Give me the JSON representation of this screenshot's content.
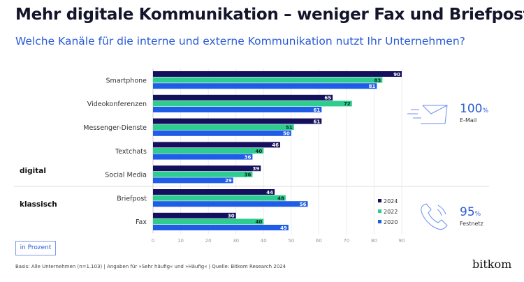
{
  "title": "Mehr digitale Kommunikation – weniger Fax und Briefpost",
  "subtitle": "Welche Kanäle für die interne und externe Kommunikation nutzt Ihr Unternehmen?",
  "unit_label": "in Prozent",
  "footer": "Basis: Alle Unternehmen (n=1.103) | Angaben für »Sehr häufig« und »Häufig« | Quelle: Bitkom Research 2024",
  "logo": "bitkom",
  "highlights": [
    {
      "value": "100",
      "unit": "%",
      "label": "E-Mail",
      "icon": "envelope-icon"
    },
    {
      "value": "95",
      "unit": "%",
      "label": "Festnetz",
      "icon": "phone-icon"
    }
  ],
  "groups": [
    {
      "label": "digital"
    },
    {
      "label": "klassisch"
    }
  ],
  "chart_data": {
    "type": "bar",
    "orientation": "horizontal",
    "categories": [
      "Smartphone",
      "Videokonferenzen",
      "Messenger-Dienste",
      "Textchats",
      "Social Media",
      "Briefpost",
      "Fax"
    ],
    "category_groups": [
      "digital",
      "digital",
      "digital",
      "digital",
      "digital",
      "klassisch",
      "klassisch"
    ],
    "series": [
      {
        "name": "2024",
        "color": "#14105e",
        "values": [
          90,
          65,
          61,
          46,
          39,
          44,
          30
        ]
      },
      {
        "name": "2022",
        "color": "#2ecc8f",
        "values": [
          83,
          72,
          51,
          40,
          36,
          48,
          40
        ]
      },
      {
        "name": "2020",
        "color": "#1f5ce8",
        "values": [
          81,
          61,
          50,
          36,
          29,
          56,
          49
        ]
      }
    ],
    "xlim": [
      0,
      90
    ],
    "xticks": [
      0,
      10,
      20,
      30,
      40,
      50,
      60,
      70,
      80,
      90
    ],
    "grid": true,
    "legend": "bottom-right"
  }
}
